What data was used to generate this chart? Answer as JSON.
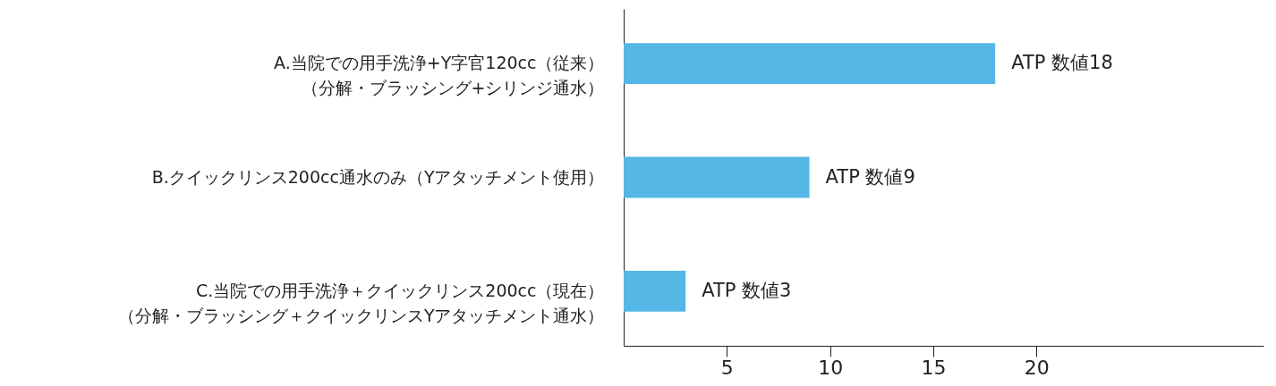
{
  "chart_data": {
    "type": "bar",
    "orientation": "horizontal",
    "categories": [
      "A.当院での用手洗浄+Y字官120cc（従来）（分解・ブラッシング+シリンジ通水）",
      "B.クイックリンス200cc通水のみ（Yアタッチメント使用）",
      "C.当院での用手洗浄＋クイックリンス200cc（現在）（分解・ブラッシング＋クイックリンスYアタッチメント通水）"
    ],
    "values": [
      18,
      9,
      3
    ],
    "value_labels": [
      "ATP 数値18",
      "ATP 数値9",
      "ATP 数値3"
    ],
    "color": "#55b7e6",
    "xlim": [
      0,
      31
    ],
    "xticks": [
      5,
      10,
      15,
      20
    ]
  }
}
